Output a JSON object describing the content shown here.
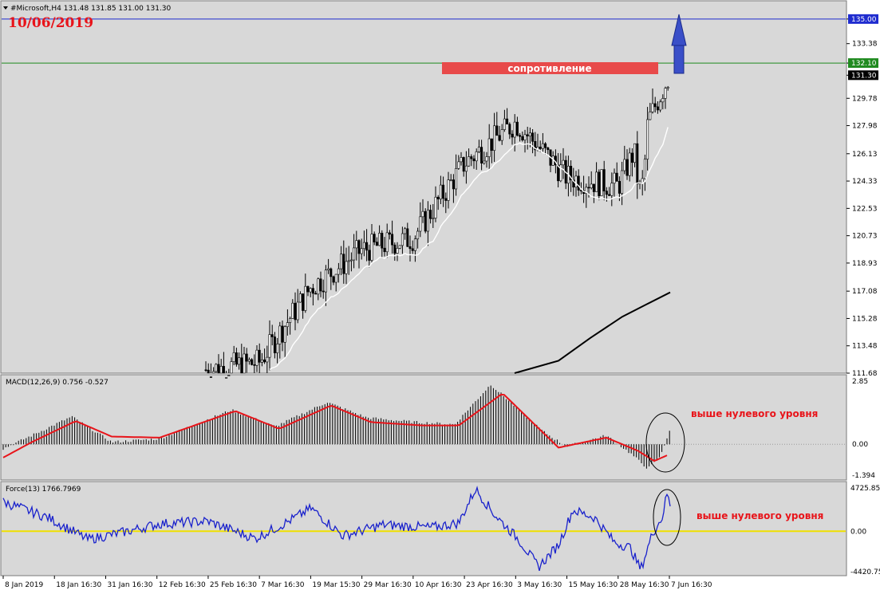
{
  "header": {
    "main": "#Microsoft,H4  131.48 131.85 131.00 131.30",
    "macd": "MACD(12,26,9) 0.756 -0.527",
    "force": "Force(13) 1766.7969"
  },
  "date_label": "10/06/2019",
  "resistance_label": "сопротивление",
  "note_macd": "выше нулевого уровня",
  "note_force": "выше нулевого уровня",
  "colors": {
    "background": "#d8d8d8",
    "candle": "#000000",
    "ma_fast": "#ffffff",
    "ma_slow": "#000000",
    "resistance_box": "#e84a4a",
    "arrow": "#3a4fc8",
    "line_135": "#1f2ccf",
    "line_132": "#1f8a1f",
    "macd_signal": "#e8141a",
    "force_line": "#1a22cc",
    "zero_line": "#f0e000"
  },
  "chart_data": [
    {
      "type": "candlestick",
      "title": "#Microsoft,H4",
      "ylim": [
        111.68,
        136.2
      ],
      "y_ticks": [
        "135.00",
        "133.38",
        "132.10",
        "131.30",
        "129.78",
        "127.98",
        "126.13",
        "124.33",
        "122.53",
        "120.73",
        "118.93",
        "117.08",
        "115.28",
        "113.48",
        "111.68"
      ],
      "x_ticks": [
        "8 Jan 2019",
        "18 Jan 16:30",
        "31 Jan 16:30",
        "12 Feb 16:30",
        "25 Feb 16:30",
        "7 Mar 16:30",
        "19 Mar 15:30",
        "29 Mar 16:30",
        "10 Apr 16:30",
        "23 Apr 16:30",
        "3 May 16:30",
        "15 May 16:30",
        "28 May 16:30",
        "7 Jun 16:30"
      ],
      "levels": [
        {
          "value": 135.0,
          "label": "135.00"
        },
        {
          "value": 132.1,
          "label": "132.10"
        }
      ],
      "current_price": {
        "value": 131.3,
        "label": "131.30"
      },
      "resistance_zone": {
        "price": 132.6,
        "from": "23 Apr 16:30",
        "to": "7 Jun 16:30"
      },
      "key_path": [
        {
          "date": "25 Feb 16:30",
          "price": 111.9
        },
        {
          "date": "7 Mar 16:30",
          "price": 112.4
        },
        {
          "date": "19 Mar 15:30",
          "price": 117.3
        },
        {
          "date": "29 Mar 16:30",
          "price": 119.8
        },
        {
          "date": "10 Apr 16:30",
          "price": 120.6
        },
        {
          "date": "23 Apr 16:30",
          "price": 125.5
        },
        {
          "date": "3 May 16:30",
          "price": 128.2
        },
        {
          "date": "15 May 16:30",
          "price": 124.6
        },
        {
          "date": "28 May 16:30",
          "price": 124.0
        },
        {
          "date": "7 Jun 16:30",
          "price": 131.3
        }
      ]
    },
    {
      "type": "macd",
      "title": "MACD(12,26,9)",
      "values_shown": [
        0.756,
        -0.527
      ],
      "ylim": [
        -1.394,
        2.85
      ],
      "y_ticks": [
        "2.85",
        "0.00",
        "-1.394"
      ]
    },
    {
      "type": "line",
      "title": "Force(13)",
      "value_shown": 1766.7969,
      "ylim": [
        -4420.75,
        4725.85
      ],
      "y_ticks": [
        "4725.850",
        "0.00",
        "-4420.75"
      ]
    }
  ]
}
